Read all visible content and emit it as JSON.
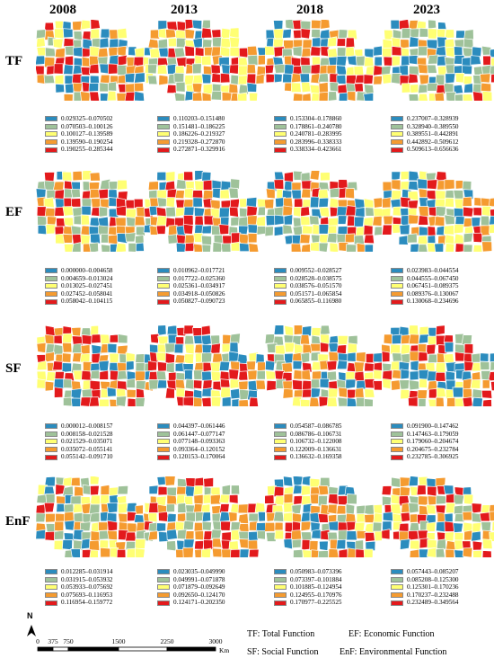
{
  "years": [
    "2008",
    "2013",
    "2018",
    "2023"
  ],
  "rows": [
    {
      "label": "TF",
      "legends": [
        [
          "0.029325–0.070502",
          "0.070503–0.100126",
          "0.100127–0.139589",
          "0.139590–0.190254",
          "0.190255–0.285344"
        ],
        [
          "0.110203–0.151480",
          "0.151481–0.186225",
          "0.186226–0.219327",
          "0.219328–0.272870",
          "0.272871–0.329916"
        ],
        [
          "0.153304–0.178860",
          "0.178861–0.240780",
          "0.240781–0.283995",
          "0.283996–0.338333",
          "0.338334–0.423661"
        ],
        [
          "0.237007–0.328939",
          "0.328940–0.389550",
          "0.389551–0.442891",
          "0.442892–0.509612",
          "0.509613–0.656636"
        ]
      ]
    },
    {
      "label": "EF",
      "legends": [
        [
          "0.000000–0.004658",
          "0.004659–0.013024",
          "0.013025–0.027451",
          "0.027452–0.058041",
          "0.058042–0.104115"
        ],
        [
          "0.010962–0.017721",
          "0.017722–0.025360",
          "0.025361–0.034917",
          "0.034918–0.050826",
          "0.050827–0.090723"
        ],
        [
          "0.009552–0.028527",
          "0.028528–0.038575",
          "0.038576–0.051570",
          "0.051571–0.065854",
          "0.065855–0.116980"
        ],
        [
          "0.023983–0.044554",
          "0.044555–0.067450",
          "0.067451–0.089375",
          "0.089376–0.130067",
          "0.130068–0.234696"
        ]
      ]
    },
    {
      "label": "SF",
      "legends": [
        [
          "0.000012–0.008157",
          "0.008158–0.021528",
          "0.021529–0.035071",
          "0.035072–0.055141",
          "0.055142–0.091710"
        ],
        [
          "0.044397–0.061446",
          "0.061447–0.077147",
          "0.077148–0.093363",
          "0.093364–0.120152",
          "0.120153–0.170064"
        ],
        [
          "0.054587–0.086785",
          "0.086786–0.106731",
          "0.106732–0.122008",
          "0.122009–0.136631",
          "0.136632–0.169358"
        ],
        [
          "0.091900–0.147462",
          "0.147463–0.179059",
          "0.179060–0.204674",
          "0.204675–0.232784",
          "0.232785–0.306925"
        ]
      ]
    },
    {
      "label": "EnF",
      "legends": [
        [
          "0.012285–0.031914",
          "0.031915–0.053932",
          "0.053933–0.075692",
          "0.075693–0.116953",
          "0.116954–0.159772"
        ],
        [
          "0.023035–0.049990",
          "0.049991–0.071878",
          "0.071879–0.092649",
          "0.092650–0.124170",
          "0.124171–0.202350"
        ],
        [
          "0.050983–0.073396",
          "0.073397–0.101884",
          "0.101885–0.124954",
          "0.124955–0.170976",
          "0.170977–0.225525"
        ],
        [
          "0.057443–0.085207",
          "0.085208–0.125300",
          "0.125301–0.170236",
          "0.170237–0.232488",
          "0.232489–0.349564"
        ]
      ]
    }
  ],
  "class_colors": [
    "#2b8cbe",
    "#9fc29a",
    "#ffff73",
    "#f59b30",
    "#e31a1c"
  ],
  "north_label": "N",
  "scale": {
    "ticks": [
      "0",
      "375",
      "750",
      "1500",
      "2250",
      "3000"
    ],
    "unit": "Km"
  },
  "abbreviations": {
    "tf": "TF: Total Function",
    "ef": "EF: Economic Function",
    "sf": "SF: Social Function",
    "enf": "EnF: Environmental Function"
  }
}
